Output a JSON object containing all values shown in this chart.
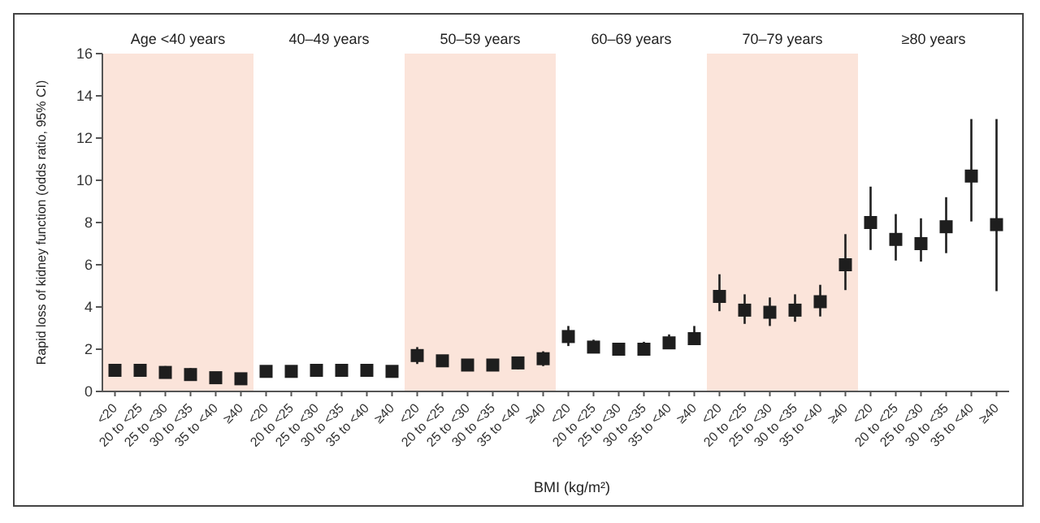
{
  "chart_data": [
    {
      "type": "scatter",
      "title": "Age <40 years",
      "ylabel": "Rapid loss of kidney function (odds ratio, 95% CI)",
      "categories": [
        "<20",
        "20 to <25",
        "25 to <30",
        "30 to <35",
        "35 to <40",
        "≥40"
      ],
      "ylim": [
        0,
        16
      ],
      "yticks": [
        0,
        2,
        4,
        6,
        8,
        10,
        12,
        14,
        16
      ],
      "marker": "square",
      "bands": [
        {
          "axis": "x",
          "from": "<20",
          "to": "≥40",
          "color": "#fbe4da"
        }
      ],
      "series": [
        {
          "color": "#1e1e1e",
          "values": [
            1.0,
            1.0,
            0.9,
            0.8,
            0.65,
            0.6
          ],
          "errors": [
            [
              0.7,
              1.3
            ],
            [
              0.75,
              1.3
            ],
            [
              0.7,
              1.2
            ],
            [
              0.55,
              1.1
            ],
            [
              0.45,
              0.9
            ],
            [
              0.4,
              0.85
            ]
          ]
        }
      ]
    },
    {
      "type": "scatter",
      "title": "40–49 years",
      "categories": [
        "<20",
        "20 to <25",
        "25 to <30",
        "30 to <35",
        "35 to <40",
        "≥40"
      ],
      "ylim": [
        0,
        16
      ],
      "yticks": [
        0,
        2,
        4,
        6,
        8,
        10,
        12,
        14,
        16
      ],
      "tick_labels": "x",
      "marker": "square",
      "series": [
        {
          "color": "#1e1e1e",
          "values": [
            0.95,
            0.95,
            1.0,
            1.0,
            1.0,
            0.95
          ],
          "errors": [
            [
              0.75,
              1.2
            ],
            [
              0.8,
              1.15
            ],
            [
              0.85,
              1.15
            ],
            [
              0.9,
              1.15
            ],
            [
              0.9,
              1.12
            ],
            [
              0.8,
              1.1
            ]
          ]
        }
      ]
    },
    {
      "type": "scatter",
      "title": "50–59 years",
      "xlabel": "BMI (kg/m²)",
      "categories": [
        "<20",
        "20 to <25",
        "25 to <30",
        "30 to <35",
        "35 to <40",
        "≥40"
      ],
      "ylim": [
        0,
        16
      ],
      "yticks": [
        0,
        2,
        4,
        6,
        8,
        10,
        12,
        14,
        16
      ],
      "tick_labels": "x",
      "marker": "square",
      "bands": [
        {
          "axis": "x",
          "from": "<20",
          "to": "≥40",
          "color": "#fbe4da"
        }
      ],
      "series": [
        {
          "color": "#1e1e1e",
          "values": [
            1.7,
            1.45,
            1.25,
            1.25,
            1.35,
            1.55
          ],
          "errors": [
            [
              1.3,
              2.1
            ],
            [
              1.2,
              1.7
            ],
            [
              1.05,
              1.4
            ],
            [
              1.05,
              1.45
            ],
            [
              1.05,
              1.6
            ],
            [
              1.2,
              1.9
            ]
          ]
        }
      ]
    },
    {
      "type": "scatter",
      "title": "60–69 years",
      "categories": [
        "<20",
        "20 to <25",
        "25 to <30",
        "30 to <35",
        "35 to <40",
        "≥40"
      ],
      "ylim": [
        0,
        16
      ],
      "yticks": [
        0,
        2,
        4,
        6,
        8,
        10,
        12,
        14,
        16
      ],
      "tick_labels": "x",
      "marker": "square",
      "series": [
        {
          "color": "#1e1e1e",
          "values": [
            2.6,
            2.1,
            2.0,
            2.0,
            2.3,
            2.5
          ],
          "errors": [
            [
              2.15,
              3.1
            ],
            [
              1.85,
              2.45
            ],
            [
              1.7,
              2.3
            ],
            [
              1.7,
              2.35
            ],
            [
              2.0,
              2.7
            ],
            [
              2.2,
              3.1
            ]
          ]
        }
      ]
    },
    {
      "type": "scatter",
      "title": "70–79 years",
      "categories": [
        "<20",
        "20 to <25",
        "25 to <30",
        "30 to <35",
        "35 to <40",
        "≥40"
      ],
      "ylim": [
        0,
        16
      ],
      "yticks": [
        0,
        2,
        4,
        6,
        8,
        10,
        12,
        14,
        16
      ],
      "tick_labels": "x",
      "marker": "square",
      "bands": [
        {
          "axis": "x",
          "from": "<20",
          "to": "≥40",
          "color": "#fbe4da"
        }
      ],
      "series": [
        {
          "color": "#1e1e1e",
          "values": [
            4.5,
            3.85,
            3.75,
            3.85,
            4.25,
            6.0
          ],
          "errors": [
            [
              3.8,
              5.55
            ],
            [
              3.2,
              4.6
            ],
            [
              3.1,
              4.45
            ],
            [
              3.3,
              4.6
            ],
            [
              3.55,
              5.05
            ],
            [
              4.8,
              7.45
            ]
          ]
        }
      ]
    },
    {
      "type": "scatter",
      "title": "≥80 years",
      "categories": [
        "<20",
        "20 to <25",
        "25 to <30",
        "30 to <35",
        "35 to <40",
        "≥40"
      ],
      "ylim": [
        0,
        16
      ],
      "yticks": [
        0,
        2,
        4,
        6,
        8,
        10,
        12,
        14,
        16
      ],
      "tick_labels": "x",
      "marker": "square",
      "series": [
        {
          "color": "#1e1e1e",
          "values": [
            8.0,
            7.2,
            7.0,
            7.8,
            10.2,
            7.9
          ],
          "errors": [
            [
              6.7,
              9.7
            ],
            [
              6.2,
              8.4
            ],
            [
              6.15,
              8.2
            ],
            [
              6.55,
              9.2
            ],
            [
              8.05,
              12.9
            ],
            [
              4.75,
              12.9
            ]
          ]
        }
      ]
    }
  ]
}
